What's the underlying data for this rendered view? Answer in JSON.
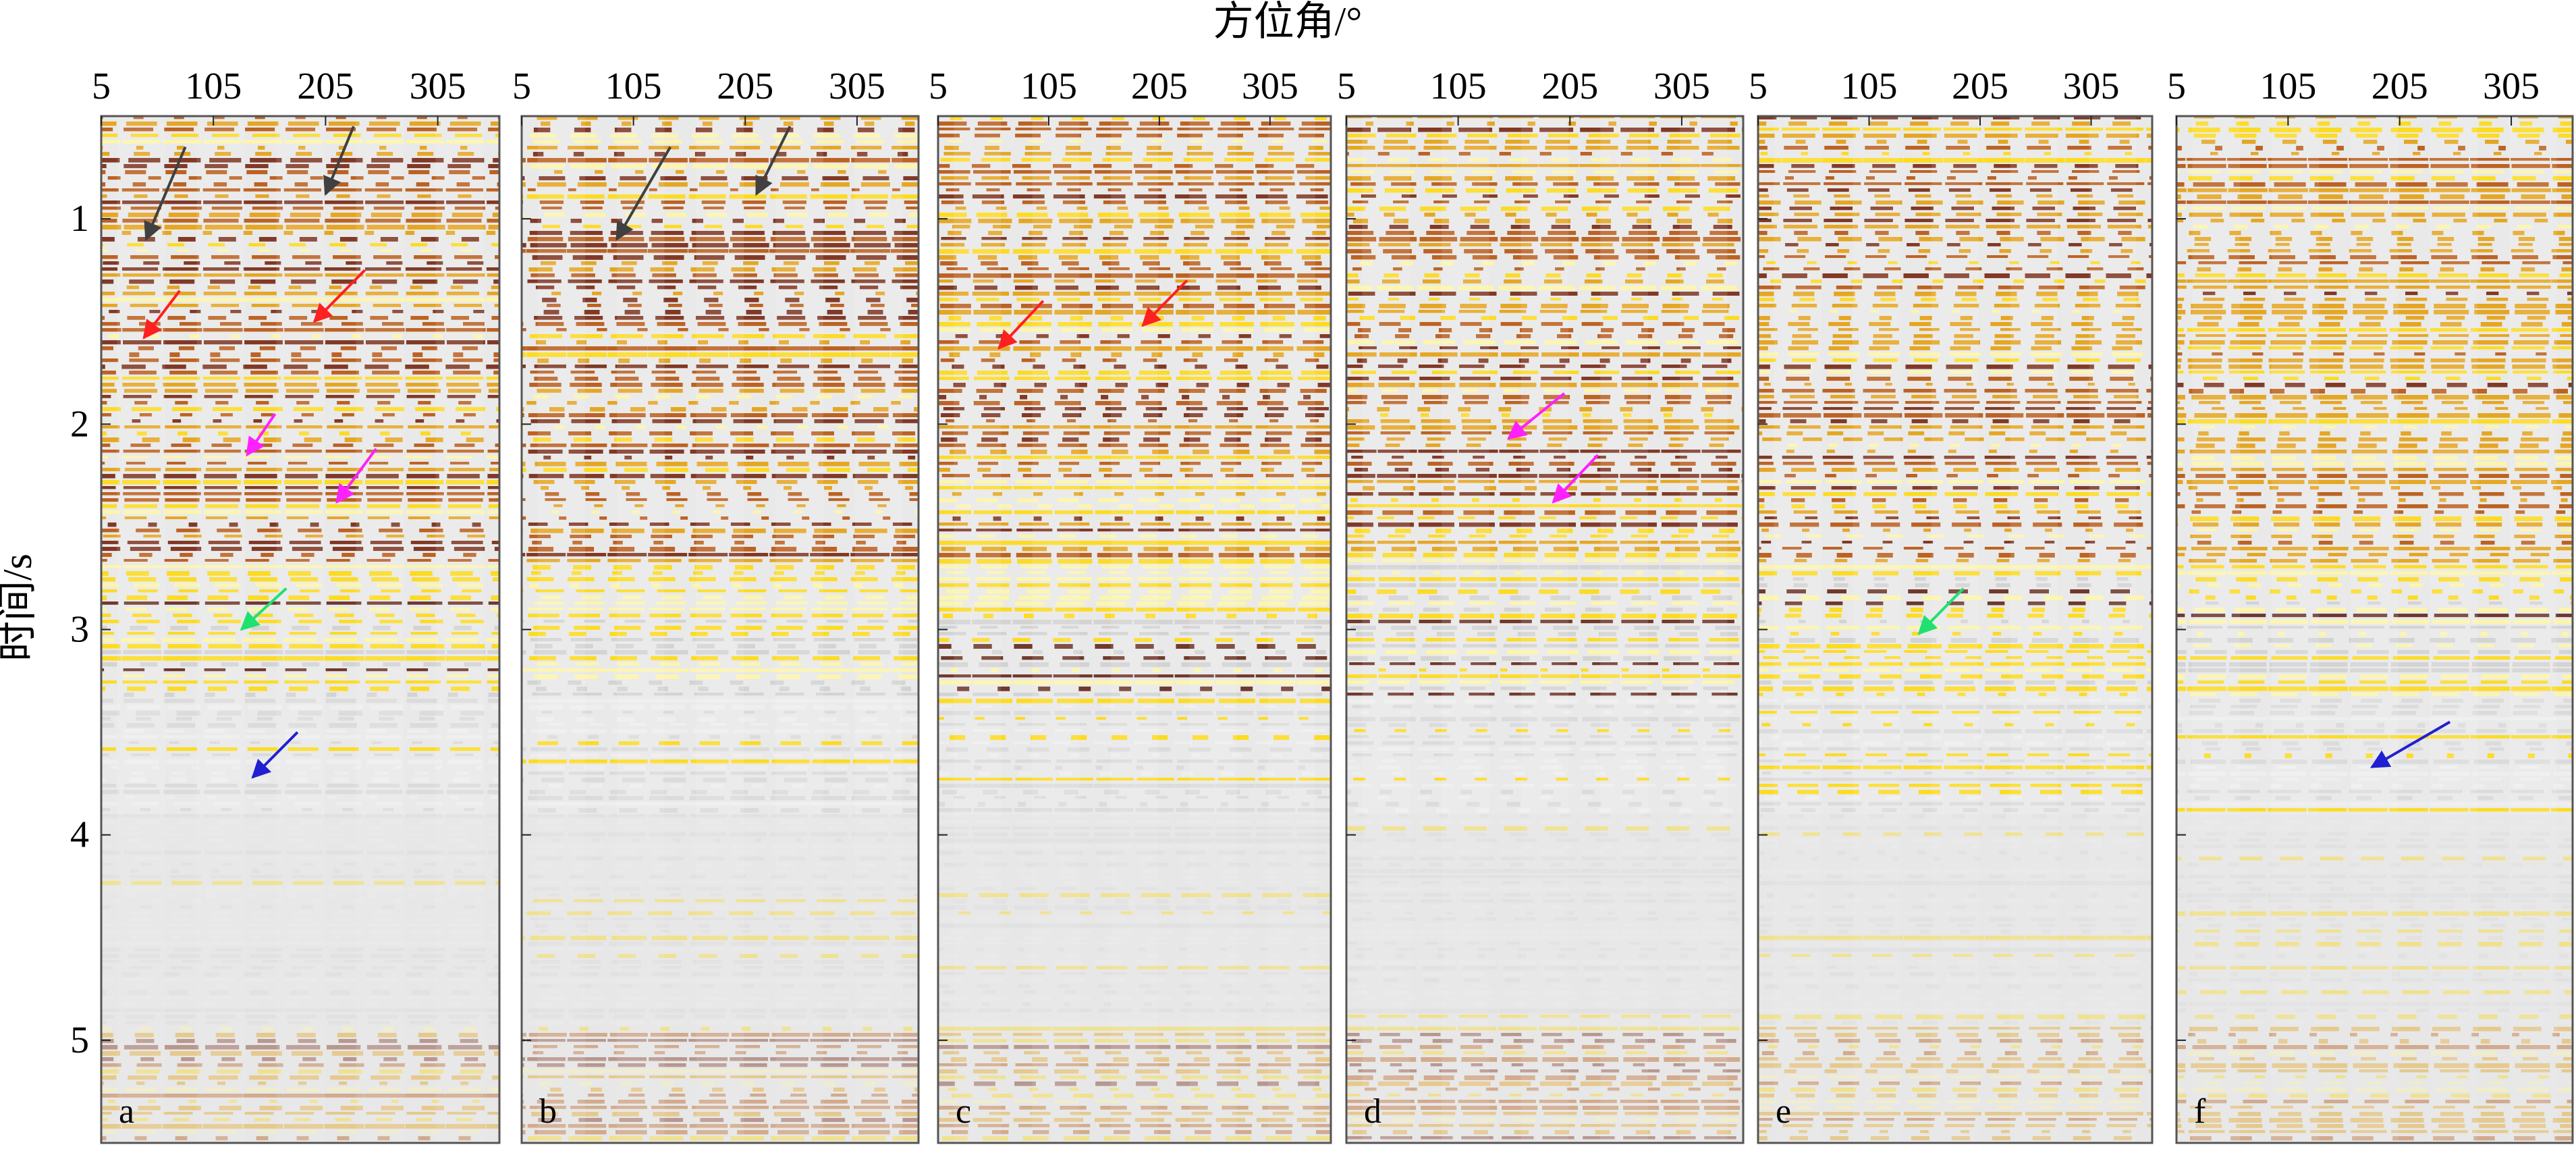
{
  "figure": {
    "x_axis_title": "方位角/°",
    "y_axis_title": "时间/s",
    "x_ticks": [
      "5",
      "105",
      "205",
      "305"
    ],
    "y_ticks": [
      "1",
      "2",
      "3",
      "4",
      "5"
    ],
    "x_range": [
      5,
      360
    ],
    "y_range": [
      0.5,
      5.5
    ],
    "y_reversed": true,
    "colormap": [
      "#e6e6e6",
      "#fff7a0",
      "#ffd800",
      "#e49a00",
      "#b44a00",
      "#6e1a04"
    ],
    "panels": [
      {
        "label": "a",
        "arrows": [
          {
            "color": "#404040",
            "from": [
              80,
              0.65
            ],
            "to": [
              45,
              1.1
            ]
          },
          {
            "color": "#404040",
            "from": [
              230,
              0.55
            ],
            "to": [
              205,
              0.88
            ]
          },
          {
            "color": "#ff2020",
            "from": [
              75,
              1.35
            ],
            "to": [
              43,
              1.58
            ]
          },
          {
            "color": "#ff2020",
            "from": [
              240,
              1.25
            ],
            "to": [
              195,
              1.5
            ]
          },
          {
            "color": "#ff20ff",
            "from": [
              160,
              1.95
            ],
            "to": [
              135,
              2.15
            ]
          },
          {
            "color": "#ff20ff",
            "from": [
              250,
              2.12
            ],
            "to": [
              215,
              2.38
            ]
          },
          {
            "color": "#20e070",
            "from": [
              170,
              2.8
            ],
            "to": [
              130,
              3.0
            ]
          },
          {
            "color": "#2020d0",
            "from": [
              180,
              3.5
            ],
            "to": [
              140,
              3.72
            ]
          }
        ]
      },
      {
        "label": "b",
        "arrows": [
          {
            "color": "#404040",
            "from": [
              138,
              0.65
            ],
            "to": [
              90,
              1.1
            ]
          },
          {
            "color": "#404040",
            "from": [
              245,
              0.55
            ],
            "to": [
              215,
              0.88
            ]
          }
        ]
      },
      {
        "label": "c",
        "arrows": [
          {
            "color": "#ff2020",
            "from": [
              100,
              1.4
            ],
            "to": [
              60,
              1.63
            ]
          },
          {
            "color": "#ff2020",
            "from": [
              230,
              1.3
            ],
            "to": [
              190,
              1.52
            ]
          }
        ]
      },
      {
        "label": "d",
        "arrows": [
          {
            "color": "#ff20ff",
            "from": [
              200,
              1.85
            ],
            "to": [
              150,
              2.07
            ]
          },
          {
            "color": "#ff20ff",
            "from": [
              230,
              2.15
            ],
            "to": [
              190,
              2.38
            ]
          }
        ]
      },
      {
        "label": "e",
        "arrows": [
          {
            "color": "#20e070",
            "from": [
              190,
              2.8
            ],
            "to": [
              150,
              3.02
            ]
          }
        ]
      },
      {
        "label": "f",
        "arrows": [
          {
            "color": "#2020d0",
            "from": [
              250,
              3.45
            ],
            "to": [
              180,
              3.67
            ]
          }
        ]
      }
    ]
  }
}
